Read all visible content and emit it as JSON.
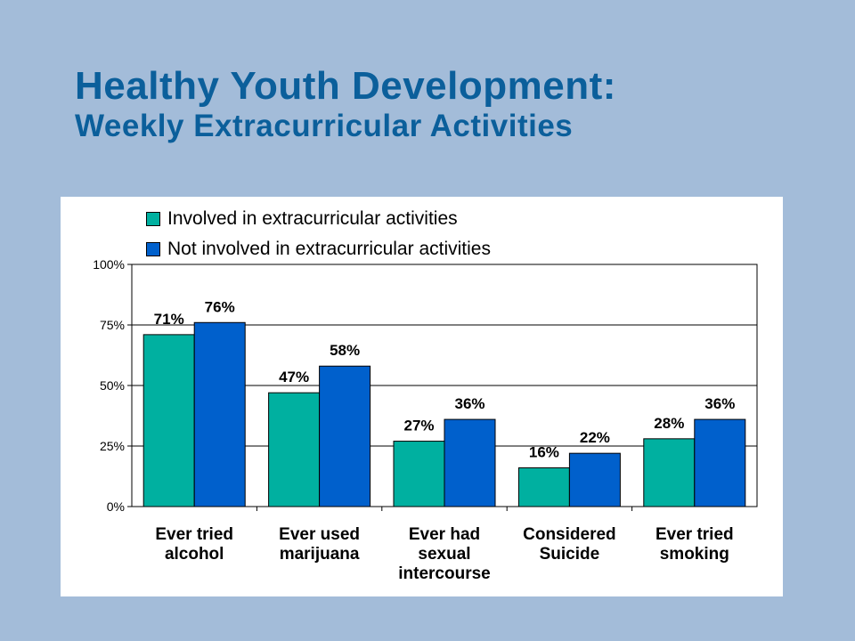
{
  "slide": {
    "title": "Healthy Youth Development:",
    "subtitle": "Weekly Extracurricular Activities"
  },
  "colors": {
    "background": "#a3bcd9",
    "title": "#0b5f9b",
    "involved": "#00b0a0",
    "not_involved": "#0060cc"
  },
  "chart_data": {
    "type": "bar",
    "categories": [
      [
        "Ever tried",
        "alcohol"
      ],
      [
        "Ever used",
        "marijuana"
      ],
      [
        "Ever had",
        "sexual",
        "intercourse"
      ],
      [
        "Considered",
        "Suicide"
      ],
      [
        "Ever tried",
        "smoking"
      ]
    ],
    "series": [
      {
        "name": "Involved in extracurricular activities",
        "values": [
          71,
          47,
          27,
          16,
          28
        ],
        "color": "#00b0a0"
      },
      {
        "name": "Not involved in extracurricular activities",
        "values": [
          76,
          58,
          36,
          22,
          36
        ],
        "color": "#0060cc"
      }
    ],
    "ylim": [
      0,
      100
    ],
    "yticks": [
      0,
      25,
      50,
      75,
      100
    ],
    "ytick_labels": [
      "0%",
      "25%",
      "50%",
      "75%",
      "100%"
    ],
    "value_suffix": "%",
    "grid": true,
    "legend_position": "top-left"
  }
}
